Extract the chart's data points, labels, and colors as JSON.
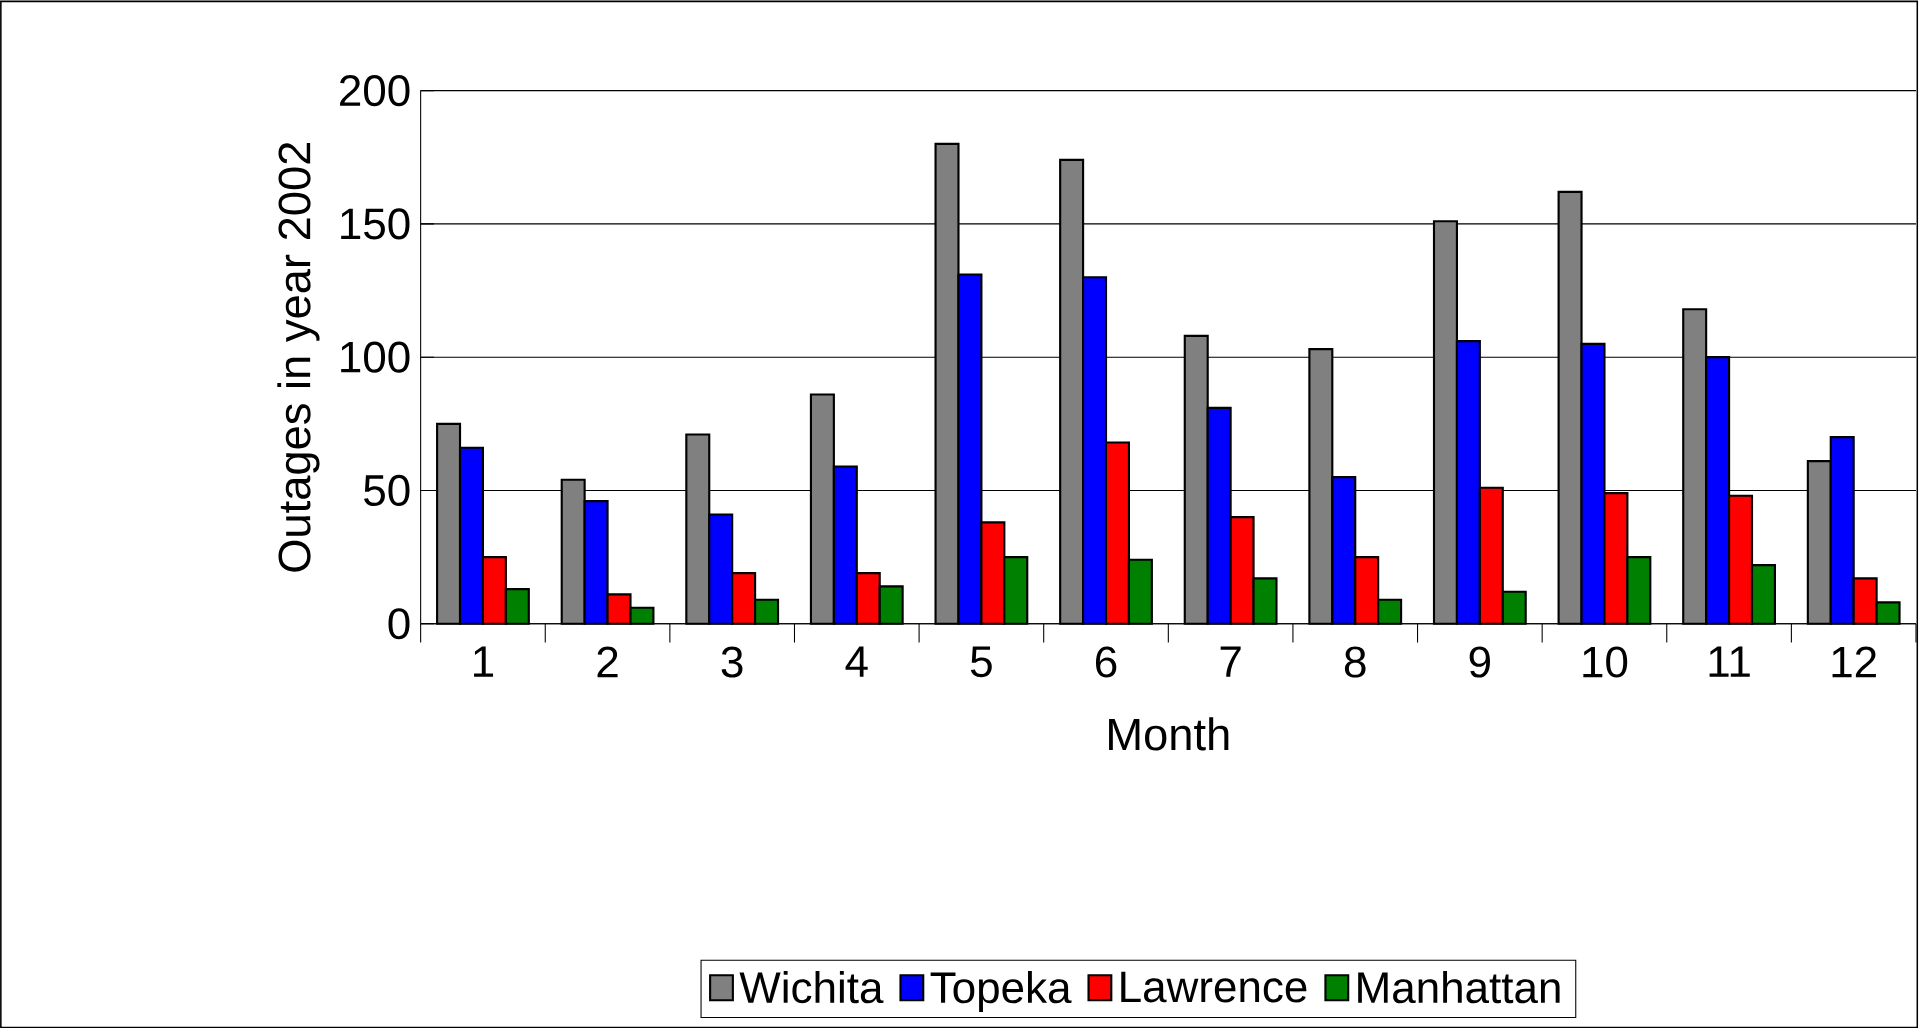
{
  "chart_data": {
    "type": "bar",
    "xlabel": "Month",
    "ylabel": "Outages in  year 2002",
    "categories": [
      "1",
      "2",
      "3",
      "4",
      "5",
      "6",
      "7",
      "8",
      "9",
      "10",
      "11",
      "12"
    ],
    "series": [
      {
        "name": "Wichita",
        "color": "#808080",
        "values": [
          75,
          54,
          71,
          86,
          180,
          174,
          108,
          103,
          151,
          162,
          118,
          61
        ]
      },
      {
        "name": "Topeka",
        "color": "#0000ff",
        "values": [
          66,
          46,
          41,
          59,
          131,
          130,
          81,
          55,
          106,
          105,
          100,
          70
        ]
      },
      {
        "name": "Lawrence",
        "color": "#ff0000",
        "values": [
          25,
          11,
          19,
          19,
          38,
          68,
          40,
          25,
          51,
          49,
          48,
          17
        ]
      },
      {
        "name": "Manhattan",
        "color": "#008000",
        "values": [
          13,
          6,
          9,
          14,
          25,
          24,
          17,
          9,
          12,
          25,
          22,
          8
        ]
      }
    ],
    "ylim": [
      0,
      200
    ],
    "yticks": [
      0,
      50,
      100,
      150,
      200
    ],
    "grid": "y",
    "legend": "bottom"
  }
}
